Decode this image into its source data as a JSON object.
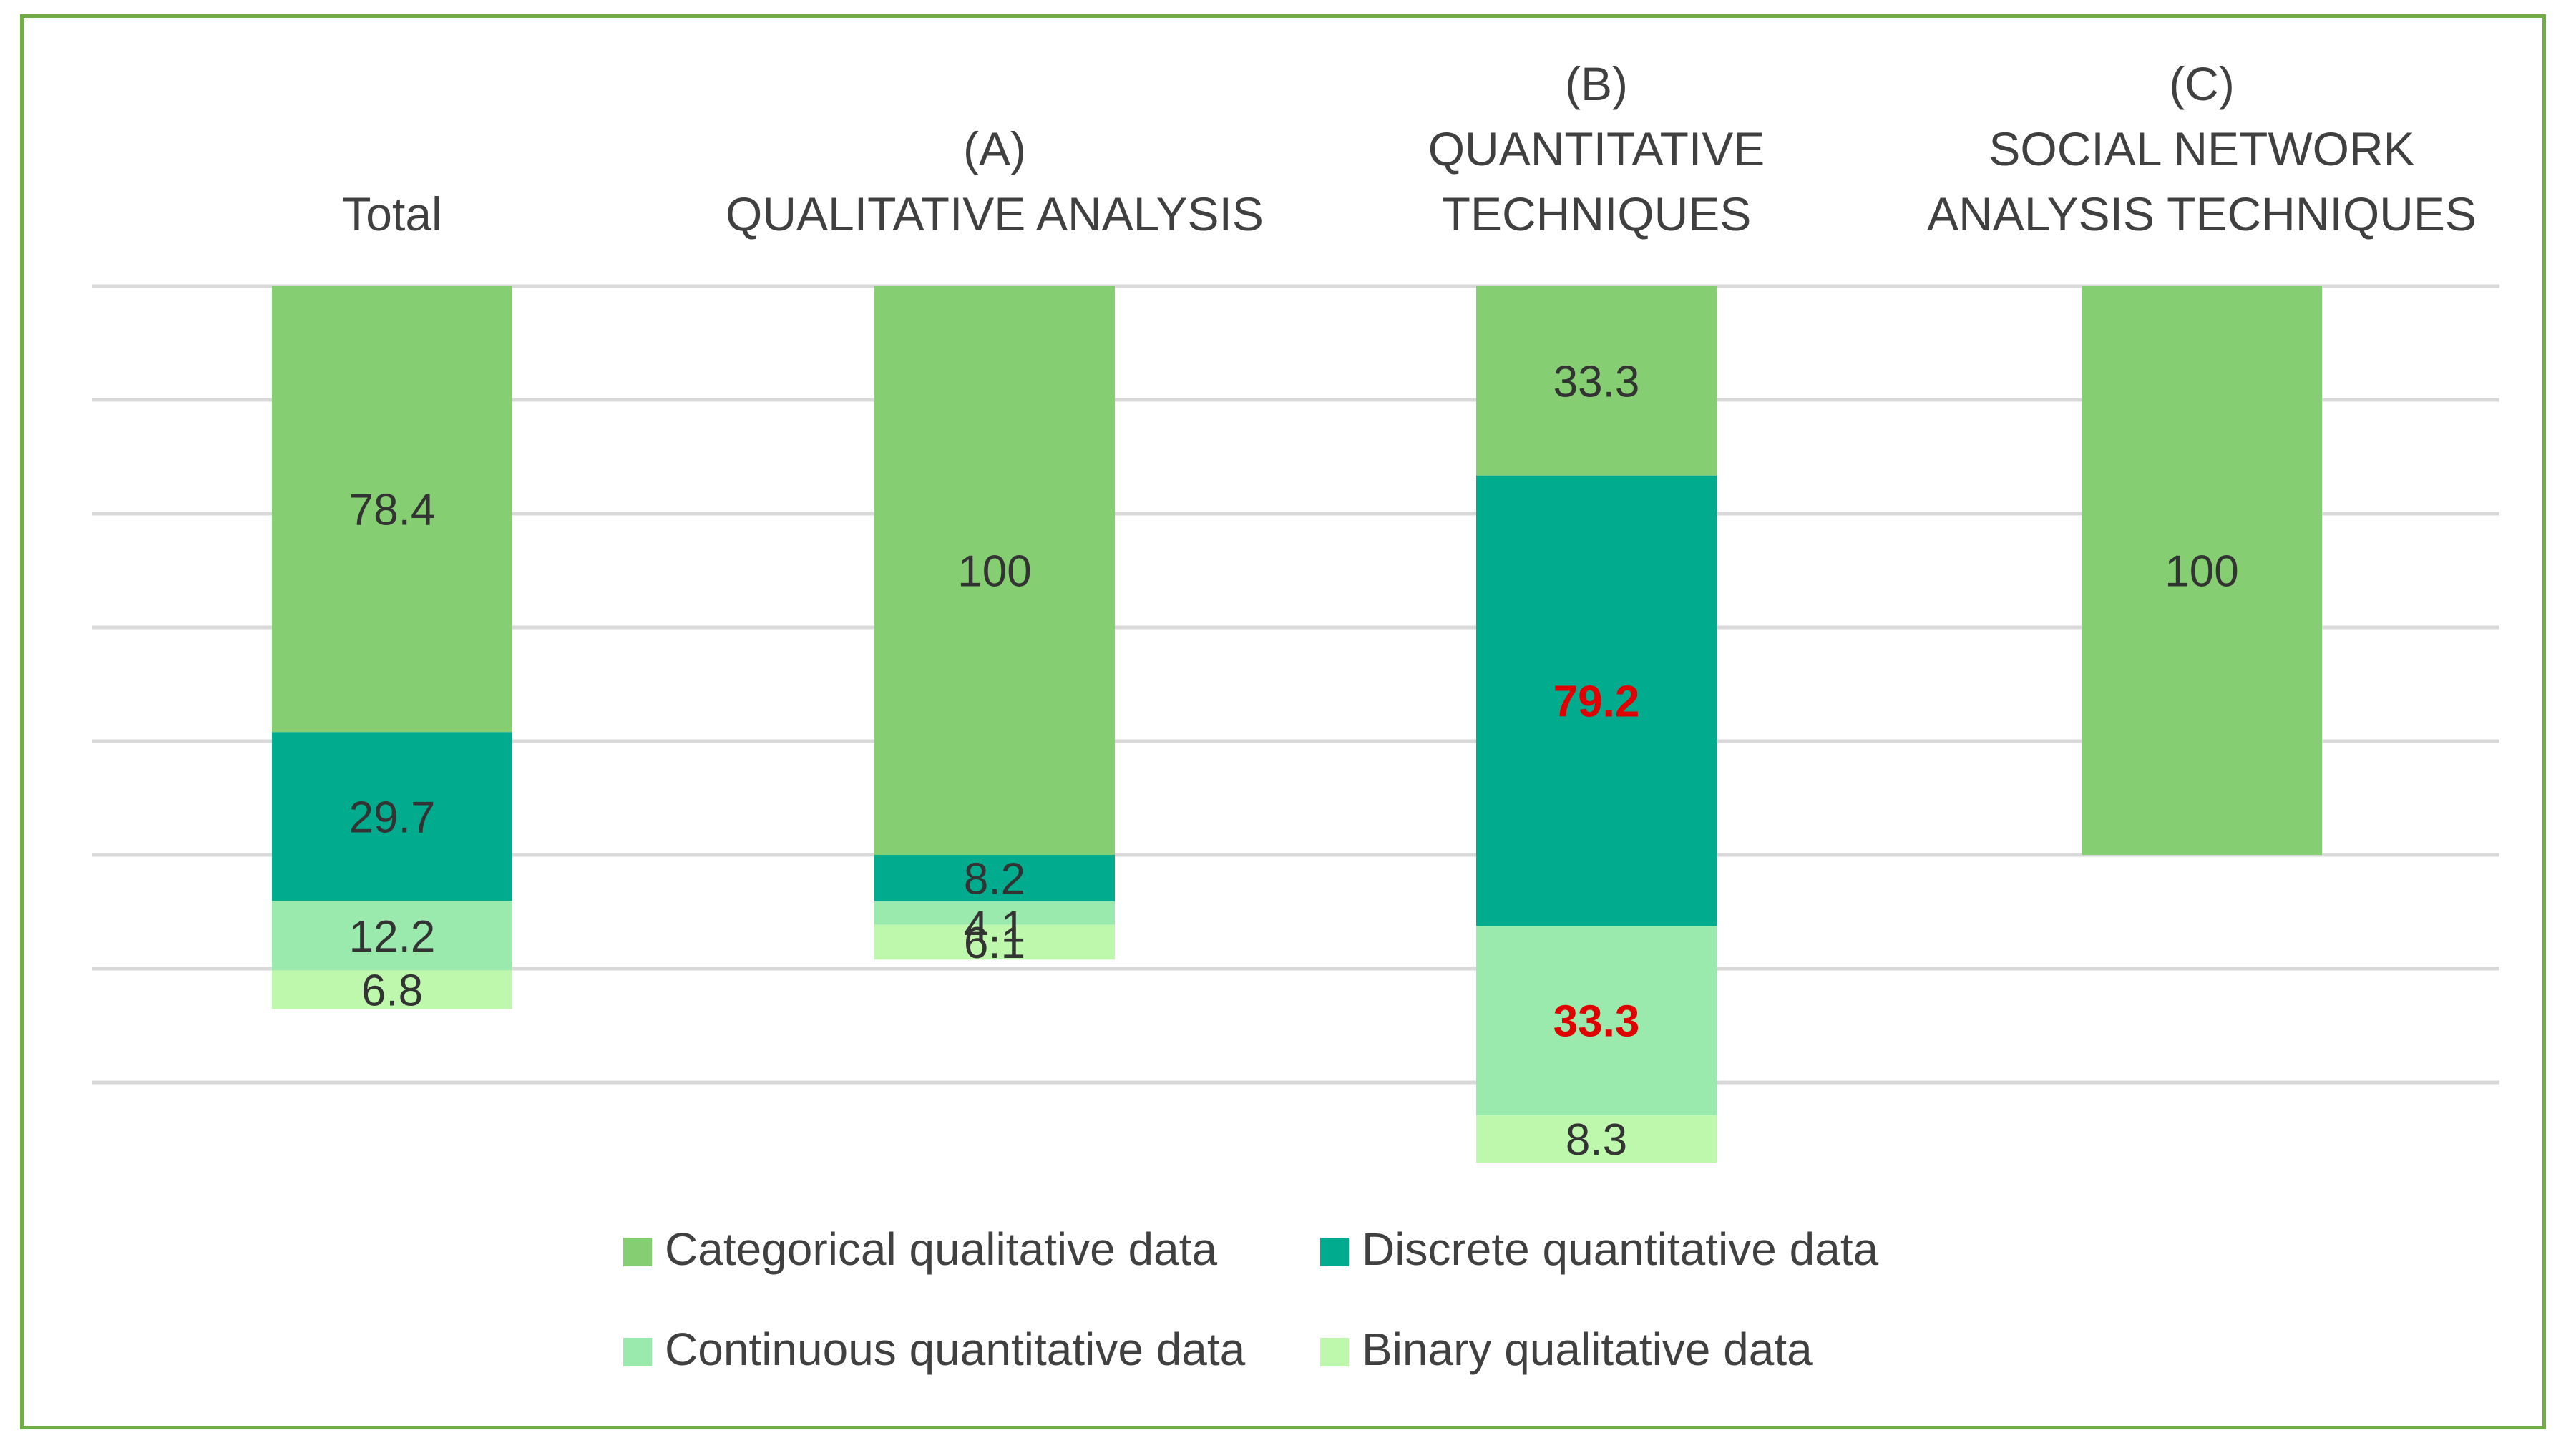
{
  "chart_data": {
    "type": "bar",
    "stacked": true,
    "direction": "down",
    "title": "",
    "xlabel": "",
    "ylabel": "",
    "ylim": [
      0,
      210
    ],
    "grid": true,
    "categories": [
      [
        "Total"
      ],
      [
        "(A)",
        "QUALITATIVE ANALYSIS"
      ],
      [
        "(B)",
        "QUANTITATIVE",
        "TECHNIQUES"
      ],
      [
        "(C)",
        "SOCIAL NETWORK",
        "ANALYSIS TECHNIQUES"
      ]
    ],
    "series": [
      {
        "name": "Categorical qualitative data",
        "color": "#85CE72",
        "values": [
          78.4,
          100,
          33.3,
          100
        ],
        "labels": [
          "78.4",
          "100",
          "33.3",
          "100"
        ]
      },
      {
        "name": "Discrete quantitative data",
        "color": "#00AB8E",
        "values": [
          29.7,
          8.2,
          79.2,
          null
        ],
        "labels": [
          "29.7",
          "8.2",
          "79.2",
          ""
        ]
      },
      {
        "name": "Continuous quantitative data",
        "color": "#9AEAAE",
        "values": [
          12.2,
          4.1,
          33.3,
          null
        ],
        "labels": [
          "12.2",
          "4.1",
          "33.3",
          ""
        ]
      },
      {
        "name": "Binary qualitative data",
        "color": "#BDF8AC",
        "values": [
          6.8,
          6.1,
          8.3,
          null
        ],
        "labels": [
          "6.8",
          "6.1",
          "8.3",
          ""
        ]
      }
    ],
    "highlighted_labels": [
      "79.2",
      "33.3"
    ],
    "highlight_color": "#E00000",
    "legend_position": "bottom"
  }
}
